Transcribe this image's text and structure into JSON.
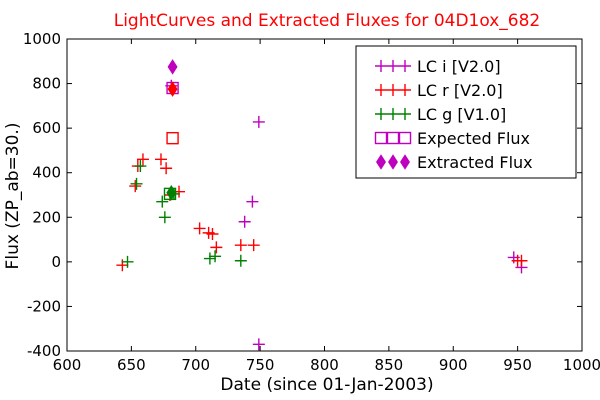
{
  "chart_data": {
    "type": "scatter",
    "title": "LightCurves and Extracted Fluxes for 04D1ox_682",
    "xlabel": "Date (since 01-Jan-2003)",
    "ylabel": "Flux (ZP_ab=30.)",
    "xlim": [
      600,
      1000
    ],
    "ylim": [
      -400,
      1000
    ],
    "xticks": [
      "600",
      "650",
      "700",
      "750",
      "800",
      "850",
      "900",
      "950",
      "1000"
    ],
    "yticks": [
      "-400",
      "-200",
      "0",
      "200",
      "400",
      "600",
      "800",
      "1000"
    ],
    "grid": false,
    "legend_position": "top-right",
    "title_color": "#ff0000",
    "series": [
      {
        "name": "LC i [V2.0]",
        "marker": "plus",
        "color": "#bf00bf",
        "points": [
          [
            681,
            790
          ],
          [
            738,
            180
          ],
          [
            744,
            270
          ],
          [
            749,
            628
          ],
          [
            749,
            -370
          ],
          [
            947,
            20
          ],
          [
            953,
            -25
          ]
        ]
      },
      {
        "name": "LC r [V2.0]",
        "marker": "plus",
        "color": "#ff0000",
        "points": [
          [
            643,
            -15
          ],
          [
            653,
            340
          ],
          [
            655,
            430
          ],
          [
            659,
            460
          ],
          [
            673,
            460
          ],
          [
            677,
            420
          ],
          [
            680,
            300
          ],
          [
            687,
            315
          ],
          [
            703,
            150
          ],
          [
            710,
            130
          ],
          [
            713,
            125
          ],
          [
            716,
            65
          ],
          [
            735,
            75
          ],
          [
            745,
            75
          ],
          [
            950,
            5
          ],
          [
            953,
            5
          ]
        ]
      },
      {
        "name": "LC g [V1.0]",
        "marker": "plus",
        "color": "#008000",
        "points": [
          [
            647,
            0
          ],
          [
            654,
            350
          ],
          [
            657,
            430
          ],
          [
            674,
            270
          ],
          [
            676,
            200
          ],
          [
            683,
            305
          ],
          [
            711,
            15
          ],
          [
            715,
            25
          ],
          [
            735,
            5
          ]
        ]
      },
      {
        "name": "Expected Flux",
        "marker": "square",
        "points": [
          [
            682,
            780,
            "#bf00bf"
          ],
          [
            682,
            555,
            "#ff0000"
          ],
          [
            680,
            305,
            "#008000"
          ]
        ]
      },
      {
        "name": "Extracted Flux",
        "marker": "diamond",
        "points": [
          [
            682,
            875,
            "#bf00bf"
          ],
          [
            682,
            775,
            "#ff0000"
          ],
          [
            681,
            310,
            "#008000"
          ]
        ]
      }
    ]
  }
}
